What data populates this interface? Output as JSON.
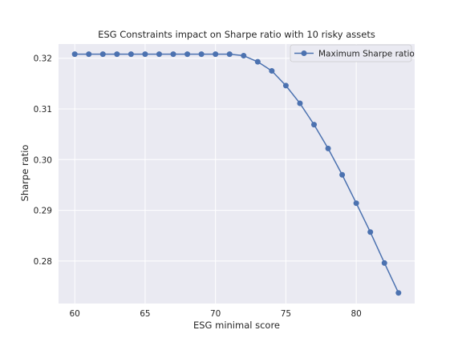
{
  "chart_data": {
    "type": "line",
    "title": "ESG Constraints impact on Sharpe ratio with 10 risky assets",
    "xlabel": "ESG minimal score",
    "ylabel": "Sharpe ratio",
    "xlim": [
      58.85,
      84.15
    ],
    "ylim": [
      0.2716,
      0.3228
    ],
    "xticks": [
      60,
      65,
      70,
      75,
      80
    ],
    "xtick_labels": [
      "60",
      "65",
      "70",
      "75",
      "80"
    ],
    "yticks": [
      0.28,
      0.29,
      0.3,
      0.31,
      0.32
    ],
    "ytick_labels": [
      "0.28",
      "0.29",
      "0.30",
      "0.31",
      "0.32"
    ],
    "grid": true,
    "legend_position": "top-right",
    "colors": {
      "background": "#eaeaf2",
      "grid": "#ffffff",
      "line": "#4c72b0"
    },
    "series": [
      {
        "name": "Maximum Sharpe ratio",
        "marker": "circle",
        "x": [
          60,
          61,
          62,
          63,
          64,
          65,
          66,
          67,
          68,
          69,
          70,
          71,
          72,
          73,
          74,
          75,
          76,
          77,
          78,
          79,
          80,
          81,
          82,
          83
        ],
        "y": [
          0.3208,
          0.3208,
          0.3208,
          0.3208,
          0.3208,
          0.3208,
          0.3208,
          0.3208,
          0.3208,
          0.3208,
          0.3208,
          0.3208,
          0.3205,
          0.3193,
          0.3175,
          0.3146,
          0.3111,
          0.3069,
          0.3022,
          0.297,
          0.2914,
          0.2857,
          0.2796,
          0.2737
        ]
      }
    ]
  }
}
